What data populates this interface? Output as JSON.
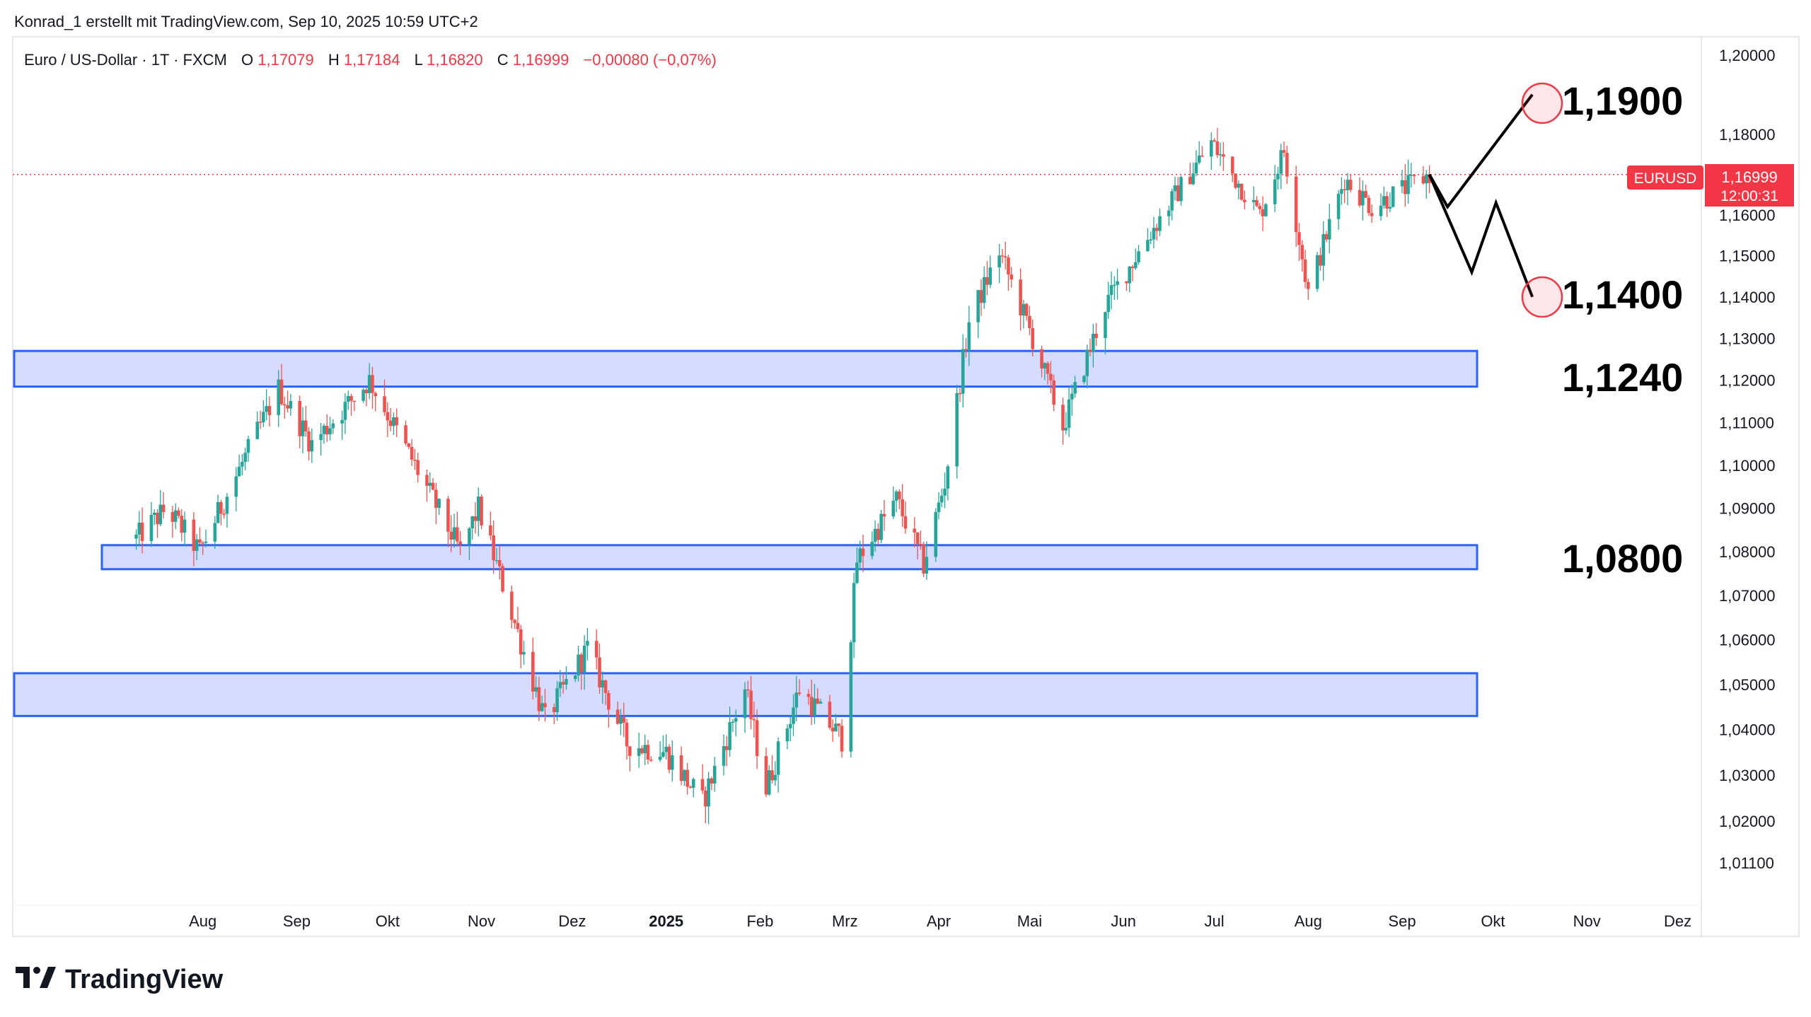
{
  "header": {
    "attribution": "Konrad_1 erstellt mit TradingView.com, Sep 10, 2025 10:59 UTC+2"
  },
  "symbol_bar": {
    "name": "Euro / US-Dollar · 1T · FXCM",
    "o_label": "O",
    "o_value": "1,17079",
    "h_label": "H",
    "h_value": "1,17184",
    "l_label": "L",
    "l_value": "1,16820",
    "c_label": "C",
    "c_value": "1,16999",
    "change": "−0,00080 (−0,07%)"
  },
  "price_tag": {
    "symbol": "EURUSD",
    "price": "1,16999",
    "countdown": "12:00:31"
  },
  "levels": [
    {
      "label": "1,1900",
      "circled": true
    },
    {
      "label": "1,1400",
      "circled": true
    },
    {
      "label": "1,1240",
      "circled": false
    },
    {
      "label": "1,0800",
      "circled": false
    }
  ],
  "footer": {
    "brand": "TradingView"
  },
  "colors": {
    "up": "#26a69a",
    "down": "#ef5350",
    "zone_fill": "#d6dcff",
    "zone_stroke": "#2962ff",
    "price_line": "#f23645"
  },
  "chart_data": {
    "type": "candlestick",
    "symbol": "EURUSD",
    "timeframe": "1T",
    "yaxis": {
      "ticks": [
        "1,20000",
        "1,18000",
        "1,16000",
        "1,15000",
        "1,14000",
        "1,13000",
        "1,12000",
        "1,11000",
        "1,10000",
        "1,09000",
        "1,08000",
        "1,07000",
        "1,06000",
        "1,05000",
        "1,04000",
        "1,03000",
        "1,02000",
        "1,01100"
      ],
      "scale": "log"
    },
    "xaxis": {
      "labels": [
        "Aug",
        "Sep",
        "Okt",
        "Nov",
        "Dez",
        "2025",
        "Feb",
        "Mrz",
        "Apr",
        "Mai",
        "Jun",
        "Jul",
        "Aug",
        "Sep",
        "Okt",
        "Nov",
        "Dez"
      ],
      "bold": [
        "2025"
      ]
    },
    "zones": [
      {
        "low": 1.1185,
        "high": 1.127
      },
      {
        "low": 1.076,
        "high": 1.0815
      },
      {
        "low": 1.043,
        "high": 1.0525
      }
    ],
    "last_price": 1.16999,
    "projection_path": [
      {
        "date": "2025-09-10",
        "price": 1.17
      },
      {
        "date": "2025-09-16",
        "price": 1.162
      },
      {
        "date": "2025-10-14",
        "price": 1.19
      }
    ],
    "projection_alt_path": [
      {
        "date": "2025-09-16",
        "price": 1.162
      },
      {
        "date": "2025-09-24",
        "price": 1.146
      },
      {
        "date": "2025-10-02",
        "price": 1.163
      },
      {
        "date": "2025-10-14",
        "price": 1.14
      }
    ],
    "anchors": [
      {
        "date": "2024-07-10",
        "price": 1.083
      },
      {
        "date": "2024-07-20",
        "price": 1.09
      },
      {
        "date": "2024-07-31",
        "price": 1.08
      },
      {
        "date": "2024-08-26",
        "price": 1.118
      },
      {
        "date": "2024-09-06",
        "price": 1.105
      },
      {
        "date": "2024-09-25",
        "price": 1.12
      },
      {
        "date": "2024-10-25",
        "price": 1.08
      },
      {
        "date": "2024-10-31",
        "price": 1.09
      },
      {
        "date": "2024-11-22",
        "price": 1.042
      },
      {
        "date": "2024-12-06",
        "price": 1.058
      },
      {
        "date": "2024-12-19",
        "price": 1.037
      },
      {
        "date": "2025-01-01",
        "price": 1.035
      },
      {
        "date": "2025-01-13",
        "price": 1.024
      },
      {
        "date": "2025-01-27",
        "price": 1.049
      },
      {
        "date": "2025-02-03",
        "price": 1.027
      },
      {
        "date": "2025-02-14",
        "price": 1.049
      },
      {
        "date": "2025-02-28",
        "price": 1.038
      },
      {
        "date": "2025-03-05",
        "price": 1.078
      },
      {
        "date": "2025-03-18",
        "price": 1.092
      },
      {
        "date": "2025-03-27",
        "price": 1.077
      },
      {
        "date": "2025-04-03",
        "price": 1.096
      },
      {
        "date": "2025-04-11",
        "price": 1.134
      },
      {
        "date": "2025-04-21",
        "price": 1.151
      },
      {
        "date": "2025-05-01",
        "price": 1.132
      },
      {
        "date": "2025-05-12",
        "price": 1.109
      },
      {
        "date": "2025-05-26",
        "price": 1.138
      },
      {
        "date": "2025-06-12",
        "price": 1.158
      },
      {
        "date": "2025-06-30",
        "price": 1.178
      },
      {
        "date": "2025-07-16",
        "price": 1.16
      },
      {
        "date": "2025-07-24",
        "price": 1.176
      },
      {
        "date": "2025-08-01",
        "price": 1.141
      },
      {
        "date": "2025-08-13",
        "price": 1.169
      },
      {
        "date": "2025-08-22",
        "price": 1.162
      },
      {
        "date": "2025-09-10",
        "price": 1.17
      }
    ]
  }
}
